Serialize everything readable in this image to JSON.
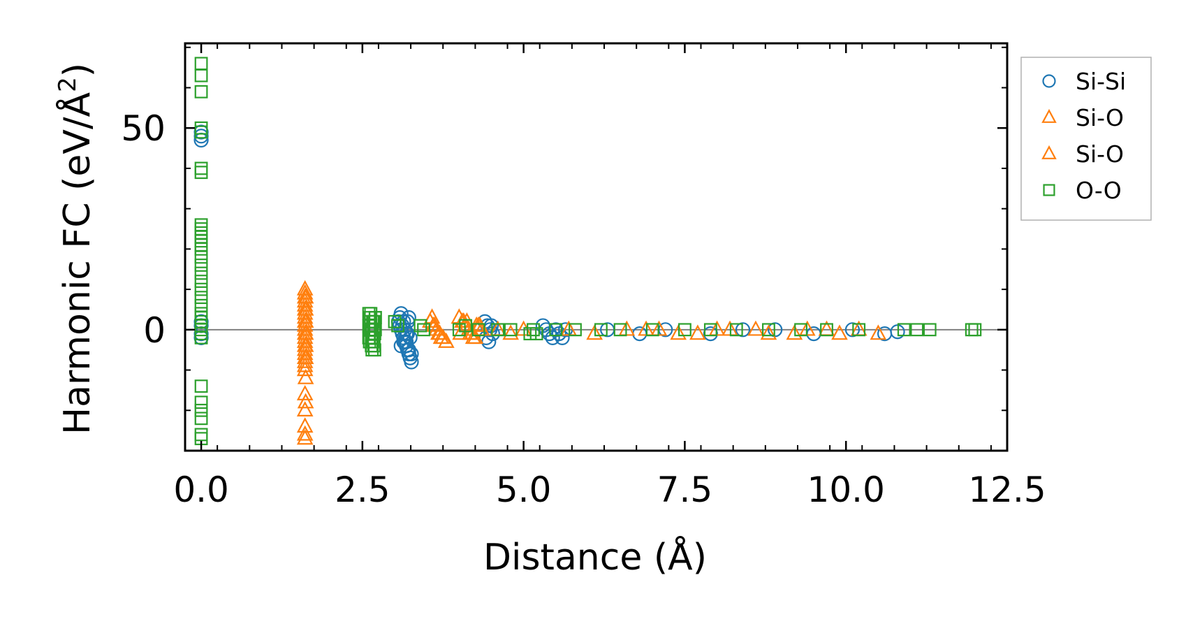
{
  "colors": {
    "si_si": "#1f77b4",
    "si_o": "#ff7f0e",
    "o_o": "#2ca02c",
    "axis": "#000000",
    "zero_line": "#808080"
  },
  "chart_data": {
    "type": "scatter",
    "title": "",
    "xlabel": "Distance (Å)",
    "ylabel_main": "Harmonic FC (eV/Å",
    "ylabel_sup": "2",
    "ylabel_close": ")",
    "xlim": [
      -0.25,
      12.5
    ],
    "ylim": [
      -30,
      71
    ],
    "xticks": [
      0,
      2.5,
      5,
      7.5,
      10,
      12.5
    ],
    "xtick_labels": [
      "0.0",
      "2.5",
      "5.0",
      "7.5",
      "10.0",
      "12.5"
    ],
    "yticks": [
      0,
      50
    ],
    "ytick_labels": [
      "0",
      "50"
    ],
    "zero_line": true,
    "legend_position": "outside-right-top",
    "series": [
      {
        "name": "Si-Si",
        "marker": "circle",
        "color_key": "si_si",
        "x": [
          0.0,
          0.0,
          0.0,
          0.0,
          0.0,
          0.0,
          0.0,
          3.06,
          3.08,
          3.1,
          3.12,
          3.14,
          3.16,
          3.18,
          3.2,
          3.22,
          3.24,
          3.26,
          3.08,
          3.1,
          3.14,
          3.18,
          3.22,
          3.26,
          3.12,
          3.16,
          3.2,
          3.24,
          3.1,
          3.18,
          3.22,
          3.14,
          3.2,
          4.4,
          4.44,
          4.48,
          4.52,
          4.42,
          4.46,
          4.5,
          5.3,
          5.35,
          5.4,
          5.45,
          5.5,
          5.55,
          5.6,
          5.65,
          6.3,
          6.8,
          7.2,
          7.9,
          8.4,
          8.9,
          9.5,
          10.1,
          10.6,
          10.8
        ],
        "y": [
          48,
          47,
          49,
          1,
          -1,
          2,
          -2,
          2,
          1,
          0,
          -1,
          -2,
          -3,
          -4,
          -5,
          -6,
          -7,
          -8,
          3,
          4,
          2,
          -3,
          -5,
          -6,
          1,
          0,
          -1,
          -2,
          -4,
          -1,
          3,
          -3,
          2,
          2,
          1,
          0,
          -1,
          -2,
          -3,
          1,
          1,
          0,
          -1,
          -2,
          0,
          -1,
          -2,
          0,
          0,
          -1,
          0,
          -1,
          0,
          0,
          -1,
          0,
          -1,
          -0.5
        ]
      },
      {
        "name": "Si-O",
        "marker": "triangle",
        "color_key": "si_o",
        "x": [
          1.61,
          1.61,
          1.61,
          1.61,
          1.61,
          1.61,
          1.61,
          1.61,
          1.61,
          1.61,
          1.61,
          1.61,
          1.61,
          1.61,
          1.61,
          1.61,
          1.61,
          1.61,
          1.61,
          1.61,
          1.61,
          1.61,
          1.61,
          1.61,
          1.61,
          1.61,
          3.55,
          3.6,
          3.65,
          3.7,
          3.75,
          3.8,
          3.58,
          3.68,
          4.0,
          4.05,
          4.1,
          4.15,
          4.2,
          4.25,
          4.3,
          4.35,
          4.02,
          4.12,
          4.22,
          4.32,
          4.6,
          4.8,
          5.0,
          5.7,
          6.1,
          6.6,
          7.1,
          7.7,
          8.2,
          8.6,
          9.2,
          9.7,
          10.2,
          10.5
        ],
        "y": [
          10,
          9,
          8,
          7,
          6,
          5,
          4,
          3,
          2,
          1,
          0,
          -1,
          -2,
          -3,
          -4,
          -5,
          -6,
          -7,
          -8,
          -9,
          -10,
          -16,
          -20,
          -24,
          -26,
          -27,
          2,
          1,
          0,
          -1,
          -2,
          -3,
          3,
          -1,
          3,
          2,
          1,
          0,
          -1,
          -2,
          1,
          0,
          -1,
          2,
          -2,
          1,
          0,
          -1,
          0,
          0,
          -1,
          0,
          0,
          -1,
          0,
          0,
          -1,
          0,
          0,
          -1
        ]
      },
      {
        "name": "Si-O",
        "marker": "triangle",
        "color_key": "si_o",
        "x": [
          1.62,
          1.62,
          1.62,
          1.62,
          1.62,
          1.62,
          1.62,
          1.62,
          3.62,
          3.72,
          4.07,
          4.17,
          4.27,
          6.9,
          7.4,
          8.0,
          8.8,
          9.4,
          9.9
        ],
        "y": [
          8,
          5,
          2,
          -1,
          -4,
          -7,
          -12,
          -18,
          1,
          -2,
          2,
          -1,
          1,
          0,
          -1,
          0,
          -1,
          0,
          -1
        ]
      },
      {
        "name": "O-O",
        "marker": "square",
        "color_key": "o_o",
        "x": [
          0.0,
          0.0,
          0.0,
          0.0,
          0.0,
          0.0,
          0.0,
          0.0,
          0.0,
          0.0,
          0.0,
          0.0,
          0.0,
          0.0,
          0.0,
          0.0,
          0.0,
          0.0,
          0.0,
          0.0,
          0.0,
          0.0,
          0.0,
          0.0,
          0.0,
          0.0,
          0.0,
          0.0,
          0.0,
          0.0,
          0.0,
          0.0,
          0.0,
          0.0,
          2.6,
          2.61,
          2.62,
          2.63,
          2.64,
          2.65,
          2.66,
          2.67,
          2.68,
          2.69,
          2.7,
          2.6,
          2.62,
          2.64,
          2.66,
          2.68,
          2.7,
          2.61,
          2.63,
          2.65,
          2.67,
          2.69,
          2.62,
          2.66,
          2.7,
          2.6,
          2.64,
          2.68,
          3.0,
          3.05,
          3.4,
          3.45,
          4.0,
          4.1,
          4.3,
          4.6,
          4.8,
          5.1,
          5.15,
          5.2,
          5.5,
          5.8,
          6.2,
          6.5,
          7.0,
          7.5,
          7.9,
          8.3,
          8.8,
          9.3,
          9.7,
          10.2,
          10.9,
          11.1,
          11.3,
          11.95,
          12.0
        ],
        "y": [
          66,
          63,
          59,
          50,
          49,
          40,
          39,
          26,
          25,
          24,
          23,
          22,
          21,
          20,
          18,
          16,
          14,
          12,
          10,
          8,
          6,
          4,
          3,
          2,
          1,
          0,
          -1,
          -2,
          -14,
          -18,
          -20,
          -22,
          -26,
          -27,
          4,
          3,
          2,
          1,
          0,
          -1,
          -2,
          -3,
          -4,
          -5,
          3,
          -2,
          1,
          -4,
          2,
          -1,
          0,
          -3,
          4,
          -5,
          2,
          -1,
          0,
          -2,
          3,
          1,
          -3,
          2,
          2,
          1,
          1,
          0,
          0,
          1,
          0,
          0,
          0,
          -1,
          0,
          -1,
          0,
          0,
          0,
          0,
          0,
          0,
          0,
          0,
          0,
          0,
          0,
          0,
          0,
          0,
          0,
          0,
          0
        ]
      }
    ]
  }
}
